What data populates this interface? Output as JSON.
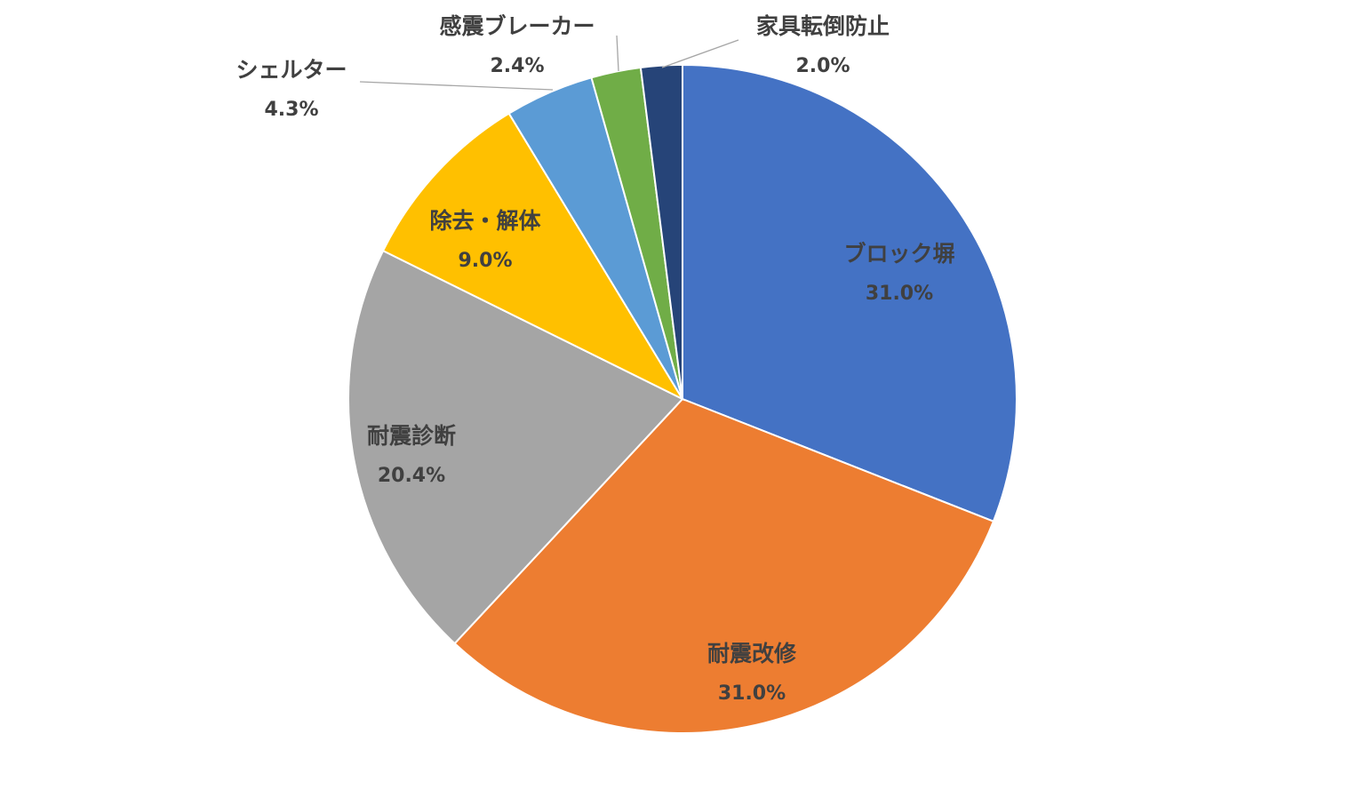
{
  "chart_data": {
    "type": "pie",
    "categories": [
      "ブロック塀",
      "耐震改修",
      "耐震診断",
      "除去・解体",
      "シェルター",
      "感震ブレーカー",
      "家具転倒防止"
    ],
    "values": [
      31.0,
      31.0,
      20.4,
      9.0,
      4.3,
      2.4,
      2.0
    ],
    "labels": [
      "31.0%",
      "31.0%",
      "20.4%",
      "9.0%",
      "4.3%",
      "2.4%",
      "2.0%"
    ],
    "colors": [
      "#4472C4",
      "#ED7D31",
      "#A5A5A5",
      "#FFC000",
      "#5B9BD5",
      "#70AD47",
      "#264478"
    ],
    "start_angle": "12 o'clock",
    "direction": "clockwise",
    "legend": "none",
    "title": ""
  }
}
